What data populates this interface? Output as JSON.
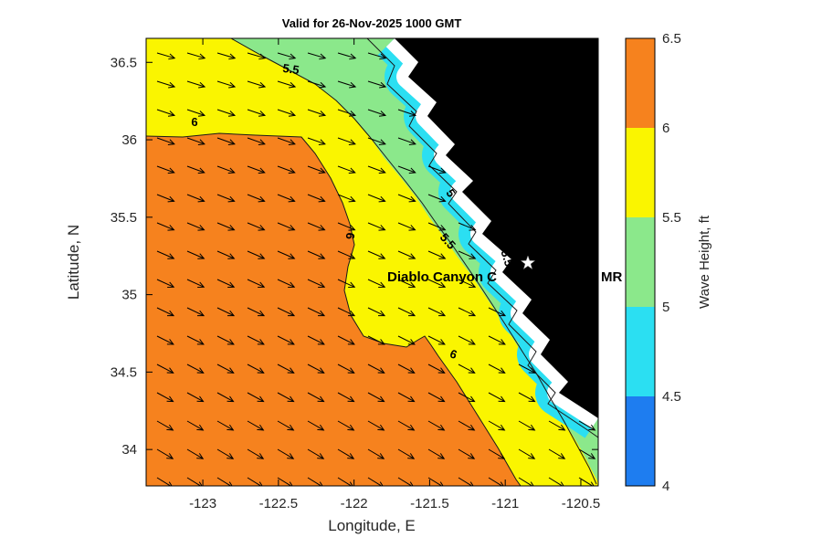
{
  "chart_data": {
    "type": "heatmap",
    "subtype": "filled-contour-wave-height-map-with-quiver-arrows",
    "title": "Valid for 26-Nov-2025 1000 GMT",
    "xlabel": "Longitude, E",
    "ylabel": "Latitude, N",
    "xlim": [
      -123.375,
      -120.385
    ],
    "ylim": [
      33.765,
      36.655
    ],
    "x_ticks": [
      -123,
      -122.5,
      -122,
      -121.5,
      -121,
      -120.5
    ],
    "y_ticks": [
      34,
      34.5,
      35,
      35.5,
      36,
      36.5
    ],
    "grid": false,
    "land_color": "#000000",
    "coastline_color": "#FFFFFF",
    "colorbar": {
      "label": "Wave Height, ft",
      "min": 4,
      "max": 6.5,
      "tick_values": [
        4,
        4.5,
        5,
        5.5,
        6,
        6.5
      ],
      "levels": [
        {
          "from": 6,
          "to": 6.5,
          "color": "#F6821E"
        },
        {
          "from": 5.5,
          "to": 6,
          "color": "#FAF500"
        },
        {
          "from": 5,
          "to": 5.5,
          "color": "#8BE88B"
        },
        {
          "from": 4.5,
          "to": 5,
          "color": "#2BDFF2"
        },
        {
          "from": 4,
          "to": 4.5,
          "color": "#1E7DF0"
        }
      ]
    },
    "contour_labels": [
      {
        "value": "5.5",
        "x": 318,
        "y": 80,
        "rot": 8
      },
      {
        "value": "6",
        "x": 213,
        "y": 138,
        "rot": 0
      },
      {
        "value": "5",
        "x": 490,
        "y": 214,
        "rot": 55
      },
      {
        "value": "5.5",
        "x": 487,
        "y": 267,
        "rot": 48
      },
      {
        "value": "5.5",
        "x": 551,
        "y": 284,
        "rot": 72
      },
      {
        "value": "6",
        "x": 379,
        "y": 258,
        "rot": 95
      },
      {
        "value": "6",
        "x": 495,
        "y": 392,
        "rot": 20
      }
    ],
    "station": {
      "fragments": [
        "Diablo Canyon C",
        "MR AM"
      ],
      "marker": "white-star"
    },
    "arrows": {
      "description": "wave direction quiver arrows pointing east-southeast toward the coast",
      "x0": 172,
      "y0": 58,
      "dx": 33,
      "dy": 31,
      "cols": 15,
      "rows": 16,
      "len": 20,
      "angle_top_deg": 16,
      "angle_bottom_deg": 32
    }
  }
}
